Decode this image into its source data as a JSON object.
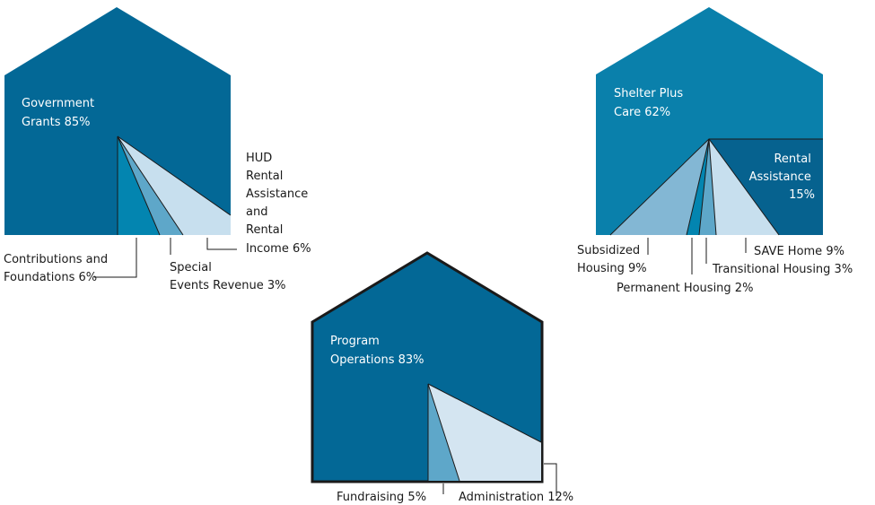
{
  "colors": {
    "house_dark": "#036896",
    "house_mid": "#0a80ab",
    "slice_teal": "#0385b0",
    "slice_steel": "#5ea7c9",
    "slice_pale": "#c7dfee",
    "slice_light": "#d4e5f1",
    "slice_blue": "#83b7d4",
    "rental": "#06628f",
    "outline": "#1a1a1a",
    "text_light": "#ffffff",
    "text_dark": "#1a1a1a"
  },
  "chart_data": [
    {
      "type": "pie",
      "main": {
        "label_lines": [
          "Government",
          "Grants 85%"
        ],
        "value": 85
      },
      "slices": [
        {
          "label_lines": [
            "Contributions and",
            "Foundations  6%"
          ],
          "value": 6
        },
        {
          "label_lines": [
            "Special",
            "Events Revenue  3%"
          ],
          "value": 3
        },
        {
          "label_lines": [
            "HUD",
            "Rental",
            "Assistance",
            "and",
            "Rental",
            "Income  6%"
          ],
          "value": 6
        }
      ]
    },
    {
      "type": "pie",
      "main": {
        "label_lines": [
          "Shelter Plus",
          "Care 62%"
        ],
        "value": 62
      },
      "slices": [
        {
          "label_lines": [
            "Rental",
            "Assistance",
            "15%"
          ],
          "value": 15
        },
        {
          "label_lines": [
            "Subsidized",
            "Housing 9%"
          ],
          "value": 9
        },
        {
          "label_lines": [
            "Permanent Housing 2%"
          ],
          "value": 2
        },
        {
          "label_lines": [
            "Transitional Housing 3%"
          ],
          "value": 3
        },
        {
          "label_lines": [
            "SAVE Home 9%"
          ],
          "value": 9
        }
      ]
    },
    {
      "type": "pie",
      "main": {
        "label_lines": [
          "Program",
          "Operations 83%"
        ],
        "value": 83
      },
      "slices": [
        {
          "label_lines": [
            "Fundraising 5%"
          ],
          "value": 5
        },
        {
          "label_lines": [
            "Administration 12%"
          ],
          "value": 12
        }
      ]
    }
  ]
}
